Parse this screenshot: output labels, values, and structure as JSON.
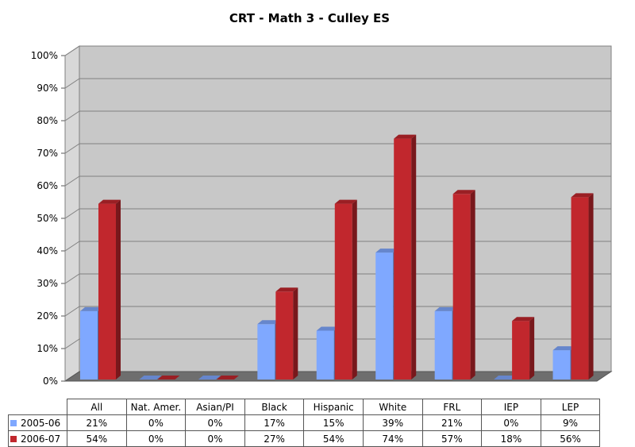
{
  "chart_data": {
    "type": "bar",
    "title": "CRT - Math 3 - Culley ES",
    "categories": [
      "All",
      "Nat. Amer.",
      "Asian/PI",
      "Black",
      "Hispanic",
      "White",
      "FRL",
      "IEP",
      "LEP"
    ],
    "series": [
      {
        "name": "2005-06",
        "values": [
          21,
          0,
          0,
          17,
          15,
          39,
          21,
          0,
          9
        ],
        "labels": [
          "21%",
          "0%",
          "0%",
          "17%",
          "15%",
          "39%",
          "21%",
          "0%",
          "9%"
        ],
        "color": "#7fa8ff"
      },
      {
        "name": "2006-07",
        "values": [
          54,
          0,
          0,
          27,
          54,
          74,
          57,
          18,
          56
        ],
        "labels": [
          "54%",
          "0%",
          "0%",
          "27%",
          "54%",
          "74%",
          "57%",
          "18%",
          "56%"
        ],
        "color": "#c1272d"
      }
    ],
    "y_ticks": [
      "0%",
      "10%",
      "20%",
      "30%",
      "40%",
      "50%",
      "60%",
      "70%",
      "80%",
      "90%",
      "100%"
    ],
    "ylim": [
      0,
      100
    ],
    "grid": true,
    "legend": "data-table-left"
  }
}
